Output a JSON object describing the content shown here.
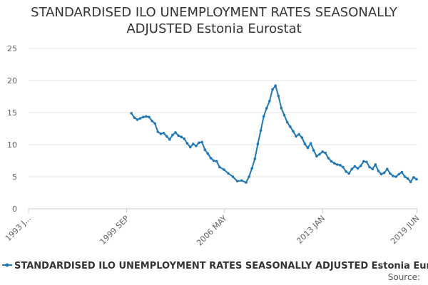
{
  "title_lines": [
    "STANDARDISED ILO UNEMPLOYMENT RATES SEASONALLY",
    "ADJUSTED Estonia Eurostat"
  ],
  "source_label": "Source:",
  "colors": {
    "series": "#1f78b4",
    "grid": "#e6e6e6",
    "axis": "#cccccc"
  },
  "chart_data": {
    "type": "line",
    "title": "STANDARDISED ILO UNEMPLOYMENT RATES SEASONALLY ADJUSTED Estonia Eurostat",
    "xlabel": "",
    "ylabel": "",
    "ylim": [
      0,
      25
    ],
    "yticks": [
      0,
      5,
      10,
      15,
      20,
      25
    ],
    "xlim": [
      1993.0,
      2019.45
    ],
    "xticks": [
      {
        "value": 1993.0,
        "label": "1993 J..."
      },
      {
        "value": 1999.67,
        "label": "1999 SEP"
      },
      {
        "value": 2006.33,
        "label": "2006 MAY"
      },
      {
        "value": 2013.0,
        "label": "2013 JAN"
      },
      {
        "value": 2019.42,
        "label": "2019 JUN"
      }
    ],
    "grid": true,
    "legend": "bottom",
    "series": [
      {
        "name": "STANDARDISED ILO UNEMPLOYMENT RATES SEASONALLY ADJUSTED Estonia Eurostat",
        "x": [
          2000.0,
          2000.2,
          2000.4,
          2000.6,
          2000.8,
          2001.0,
          2001.2,
          2001.4,
          2001.6,
          2001.8,
          2002.0,
          2002.2,
          2002.4,
          2002.6,
          2002.8,
          2003.0,
          2003.2,
          2003.4,
          2003.6,
          2003.8,
          2004.0,
          2004.2,
          2004.4,
          2004.6,
          2004.8,
          2005.0,
          2005.2,
          2005.4,
          2005.6,
          2005.8,
          2006.0,
          2006.3,
          2006.6,
          2006.9,
          2007.2,
          2007.5,
          2007.8,
          2008.0,
          2008.2,
          2008.4,
          2008.6,
          2008.8,
          2009.0,
          2009.2,
          2009.4,
          2009.6,
          2009.8,
          2010.0,
          2010.2,
          2010.4,
          2010.6,
          2010.8,
          2011.0,
          2011.2,
          2011.4,
          2011.6,
          2011.8,
          2012.0,
          2012.2,
          2012.4,
          2012.6,
          2012.8,
          2013.0,
          2013.2,
          2013.4,
          2013.6,
          2013.8,
          2014.0,
          2014.2,
          2014.4,
          2014.6,
          2014.8,
          2015.0,
          2015.2,
          2015.4,
          2015.6,
          2015.8,
          2016.0,
          2016.2,
          2016.4,
          2016.6,
          2016.8,
          2017.0,
          2017.2,
          2017.4,
          2017.6,
          2017.8,
          2018.0,
          2018.2,
          2018.4,
          2018.6,
          2018.8,
          2019.0,
          2019.2,
          2019.4
        ],
        "values": [
          14.9,
          14.2,
          13.9,
          14.1,
          14.3,
          14.4,
          14.3,
          13.7,
          13.3,
          12.0,
          11.7,
          11.8,
          11.3,
          10.8,
          11.5,
          11.9,
          11.4,
          11.2,
          10.9,
          10.2,
          9.6,
          10.1,
          9.8,
          10.3,
          10.4,
          9.2,
          8.6,
          7.9,
          7.5,
          7.4,
          6.5,
          6.1,
          5.5,
          5.0,
          4.3,
          4.4,
          4.1,
          5.0,
          6.3,
          7.8,
          10.1,
          12.2,
          14.4,
          15.7,
          16.8,
          18.6,
          19.2,
          17.6,
          15.7,
          14.6,
          13.5,
          12.8,
          12.1,
          11.3,
          11.6,
          11.1,
          10.1,
          9.5,
          10.2,
          9.1,
          8.2,
          8.5,
          8.9,
          8.7,
          7.9,
          7.4,
          7.1,
          6.9,
          6.8,
          6.5,
          5.8,
          5.5,
          6.2,
          6.6,
          6.3,
          6.7,
          7.4,
          7.3,
          6.5,
          6.2,
          6.9,
          5.9,
          5.4,
          5.6,
          6.2,
          5.5,
          5.1,
          5.0,
          5.4,
          5.7,
          5.0,
          4.7,
          4.2,
          4.9,
          4.6
        ]
      }
    ]
  }
}
